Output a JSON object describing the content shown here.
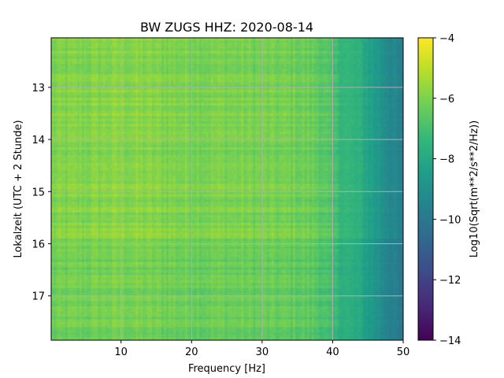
{
  "chart_data": {
    "type": "heatmap",
    "title": "BW ZUGS  HHZ: 2020-08-14",
    "xlabel": "Frequency [Hz]",
    "ylabel": "Lokalzeit (UTC + 2 Stunde)",
    "xlim": [
      0.1,
      50
    ],
    "ylim": [
      12.05,
      17.85
    ],
    "y_inverted": true,
    "x_ticks": [
      10,
      20,
      30,
      40,
      50
    ],
    "y_ticks": [
      13,
      14,
      15,
      16,
      17
    ],
    "grid": true,
    "colormap": "viridis",
    "colorbar": {
      "label": "Log10(Sqrt(m**2/s**2/Hz))",
      "range": [
        -14,
        -4
      ],
      "ticks": [
        -4,
        -6,
        -8,
        -10,
        -12,
        -14
      ]
    },
    "approx_level_profile": {
      "freq_hz": [
        0,
        5,
        10,
        15,
        20,
        25,
        30,
        35,
        38,
        40,
        42,
        44,
        46,
        48,
        50
      ],
      "log10_psd": [
        -6.0,
        -5.9,
        -5.8,
        -5.9,
        -6.0,
        -6.0,
        -6.1,
        -6.2,
        -6.4,
        -7.0,
        -7.4,
        -7.8,
        -8.5,
        -9.2,
        -9.8
      ]
    }
  },
  "colors": {
    "viridis": [
      "#440154",
      "#482878",
      "#3e4a89",
      "#31688e",
      "#26828e",
      "#1f9e89",
      "#35b779",
      "#6ece58",
      "#b5de2b",
      "#fde725"
    ],
    "grid": "#b0b0b0"
  }
}
